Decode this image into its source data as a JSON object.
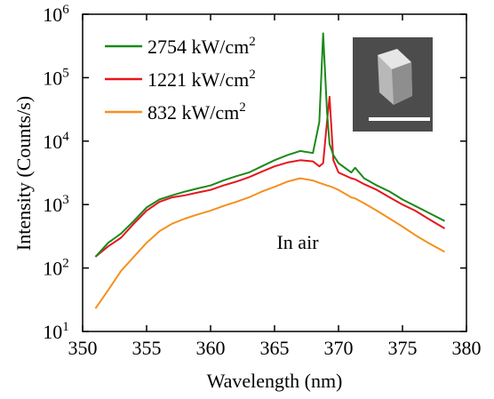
{
  "chart_data": {
    "type": "line",
    "xlabel": "Wavelength (nm)",
    "ylabel": "Intensity (Counts/s)",
    "annotation": "In air",
    "log_y": true,
    "x": [
      351,
      352,
      353,
      354,
      355,
      356,
      357,
      358,
      359,
      360,
      361,
      362,
      363,
      364,
      365,
      366,
      367,
      368,
      368.5,
      368.8,
      369.1,
      369.3,
      369.6,
      370,
      371,
      371.3,
      372,
      373,
      374,
      375,
      376,
      377,
      378.3
    ],
    "series": [
      {
        "name": "2754 kW/cm^2",
        "color": "#1a8a1a",
        "values": [
          150,
          250,
          350,
          550,
          900,
          1200,
          1400,
          1600,
          1800,
          2000,
          2400,
          2800,
          3200,
          4000,
          5000,
          6000,
          7000,
          6500,
          20000,
          500000,
          30000,
          9000,
          6000,
          4500,
          3200,
          3800,
          2600,
          2000,
          1600,
          1200,
          950,
          750,
          550
        ]
      },
      {
        "name": "1221 kW/cm^2",
        "color": "#e8141e",
        "values": [
          150,
          220,
          300,
          500,
          800,
          1100,
          1300,
          1400,
          1550,
          1700,
          2000,
          2300,
          2700,
          3300,
          4000,
          4600,
          5000,
          4800,
          4000,
          4500,
          20000,
          50000,
          5000,
          3200,
          2600,
          2500,
          2100,
          1700,
          1300,
          1000,
          800,
          600,
          420
        ]
      },
      {
        "name": "832 kW/cm^2",
        "color": "#f5901e",
        "values": [
          23,
          45,
          90,
          150,
          250,
          380,
          500,
          600,
          700,
          800,
          950,
          1100,
          1300,
          1600,
          1900,
          2300,
          2600,
          2400,
          2200,
          2100,
          2000,
          1950,
          1850,
          1700,
          1300,
          1250,
          1050,
          800,
          600,
          450,
          330,
          250,
          180
        ]
      }
    ],
    "xlim": [
      350,
      380
    ],
    "xticks": [
      350,
      355,
      360,
      365,
      370,
      375,
      380
    ],
    "ylim": [
      10,
      1000000
    ],
    "yticks": [
      {
        "value": 10,
        "label": "10^1"
      },
      {
        "value": 100,
        "label": "10^2"
      },
      {
        "value": 1000,
        "label": "10^3"
      },
      {
        "value": 10000,
        "label": "10^4"
      },
      {
        "value": 100000,
        "label": "10^5"
      },
      {
        "value": 1000000,
        "label": "10^6"
      }
    ],
    "grid": false,
    "legend": "upper left"
  }
}
